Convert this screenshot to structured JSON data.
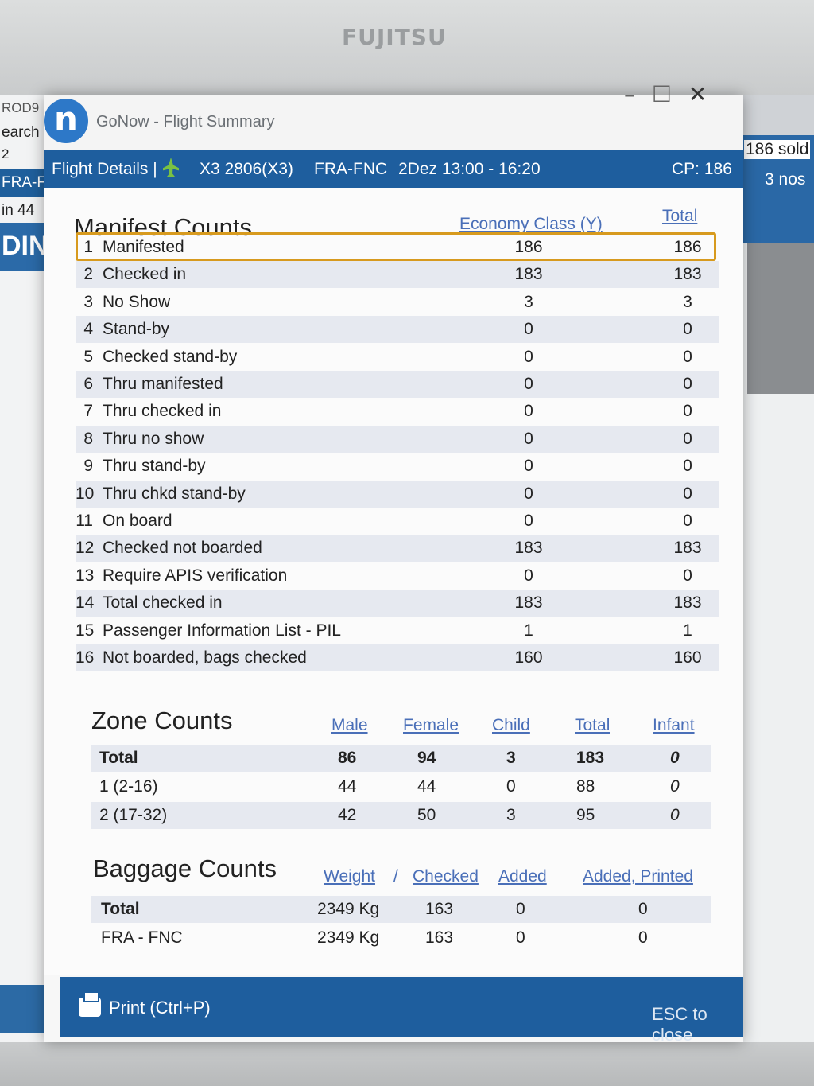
{
  "monitor": {
    "brand": "FUJITSU"
  },
  "background_app": {
    "left_texts": [
      "ROD9",
      "earch",
      "2",
      "FRA-F",
      "in 44",
      "DIN"
    ],
    "right_texts": [
      "186 sold",
      "3 nos"
    ]
  },
  "window": {
    "app_title": "GoNow - Flight Summary",
    "controls": {
      "minimize": "–",
      "maximize": "☐",
      "close": "✕"
    }
  },
  "header": {
    "label": "Flight Details |",
    "flight": "X3 2806(X3)",
    "route": "FRA-FNC",
    "schedule": "2Dez 13:00 - 16:20",
    "cp": "CP: 186"
  },
  "manifest": {
    "title": "Manifest Counts",
    "col_class": "Economy Class (Y)",
    "col_total": "Total",
    "rows": [
      {
        "num": "1",
        "label": "Manifested",
        "economy": "186",
        "total": "186"
      },
      {
        "num": "2",
        "label": "Checked in",
        "economy": "183",
        "total": "183"
      },
      {
        "num": "3",
        "label": "No Show",
        "economy": "3",
        "total": "3"
      },
      {
        "num": "4",
        "label": "Stand-by",
        "economy": "0",
        "total": "0"
      },
      {
        "num": "5",
        "label": "Checked stand-by",
        "economy": "0",
        "total": "0"
      },
      {
        "num": "6",
        "label": "Thru manifested",
        "economy": "0",
        "total": "0"
      },
      {
        "num": "7",
        "label": "Thru checked in",
        "economy": "0",
        "total": "0"
      },
      {
        "num": "8",
        "label": "Thru no show",
        "economy": "0",
        "total": "0"
      },
      {
        "num": "9",
        "label": "Thru stand-by",
        "economy": "0",
        "total": "0"
      },
      {
        "num": "10",
        "label": "Thru chkd stand-by",
        "economy": "0",
        "total": "0"
      },
      {
        "num": "11",
        "label": "On board",
        "economy": "0",
        "total": "0"
      },
      {
        "num": "12",
        "label": "Checked not boarded",
        "economy": "183",
        "total": "183"
      },
      {
        "num": "13",
        "label": "Require APIS verification",
        "economy": "0",
        "total": "0"
      },
      {
        "num": "14",
        "label": "Total checked in",
        "economy": "183",
        "total": "183"
      },
      {
        "num": "15",
        "label": "Passenger Information List - PIL",
        "economy": "1",
        "total": "1"
      },
      {
        "num": "16",
        "label": "Not boarded, bags checked",
        "economy": "160",
        "total": "160"
      }
    ]
  },
  "zones": {
    "title": "Zone Counts",
    "headers": {
      "male": "Male",
      "female": "Female",
      "child": "Child",
      "total": "Total",
      "infant": "Infant"
    },
    "rows": [
      {
        "zone": "Total",
        "male": "86",
        "female": "94",
        "child": "3",
        "total": "183",
        "infant": "0"
      },
      {
        "zone": "1 (2-16)",
        "male": "44",
        "female": "44",
        "child": "0",
        "total": "88",
        "infant": "0"
      },
      {
        "zone": "2 (17-32)",
        "male": "42",
        "female": "50",
        "child": "3",
        "total": "95",
        "infant": "0"
      }
    ]
  },
  "baggage": {
    "title": "Baggage Counts",
    "headers": {
      "weight": "Weight",
      "sep": "/",
      "checked": "Checked",
      "added": "Added",
      "added_printed": "Added, Printed"
    },
    "rows": [
      {
        "route": "Total",
        "weight": "2349 Kg",
        "checked": "163",
        "added": "0",
        "added_printed": "0"
      },
      {
        "route": "FRA - FNC",
        "weight": "2349 Kg",
        "checked": "163",
        "added": "0",
        "added_printed": "0"
      }
    ]
  },
  "footer": {
    "print_label": "Print (Ctrl+P)",
    "esc_label": "ESC to close"
  },
  "colors": {
    "header_blue": "#1e5e9e",
    "selection_outline": "#d79a1e",
    "column_header": "#4a6fb8"
  }
}
